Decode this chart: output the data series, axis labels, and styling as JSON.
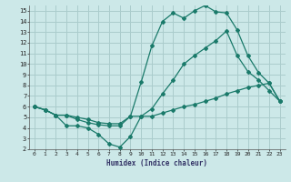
{
  "xlabel": "Humidex (Indice chaleur)",
  "bg_color": "#cce8e8",
  "grid_color": "#aacccc",
  "line_color": "#1a7a6a",
  "xlim": [
    -0.5,
    23.5
  ],
  "ylim": [
    2,
    15.5
  ],
  "xticks": [
    0,
    1,
    2,
    3,
    4,
    5,
    6,
    7,
    8,
    9,
    10,
    11,
    12,
    13,
    14,
    15,
    16,
    17,
    18,
    19,
    20,
    21,
    22,
    23
  ],
  "yticks": [
    2,
    3,
    4,
    5,
    6,
    7,
    8,
    9,
    10,
    11,
    12,
    13,
    14,
    15
  ],
  "line1_x": [
    0,
    1,
    2,
    3,
    4,
    5,
    6,
    7,
    8,
    9,
    10,
    11,
    12,
    13,
    14,
    15,
    16,
    17,
    18,
    19,
    20,
    21,
    22,
    23
  ],
  "line1_y": [
    6.0,
    5.7,
    5.2,
    5.2,
    5.0,
    4.8,
    4.5,
    4.4,
    4.4,
    5.1,
    8.3,
    11.7,
    14.0,
    14.8,
    14.3,
    15.0,
    15.5,
    14.9,
    14.8,
    13.2,
    10.8,
    9.2,
    8.2,
    6.5
  ],
  "line2_x": [
    0,
    1,
    2,
    3,
    4,
    5,
    6,
    7,
    8,
    9,
    10,
    11,
    12,
    13,
    14,
    15,
    16,
    17,
    18,
    19,
    20,
    21,
    22,
    23
  ],
  "line2_y": [
    6.0,
    5.7,
    5.2,
    5.2,
    4.8,
    4.5,
    4.3,
    4.2,
    4.2,
    5.1,
    5.1,
    5.8,
    7.2,
    8.5,
    10.0,
    10.8,
    11.5,
    12.2,
    13.1,
    10.8,
    9.3,
    8.5,
    7.5,
    6.5
  ],
  "line3_x": [
    0,
    1,
    2,
    3,
    4,
    5,
    6,
    7,
    8,
    9,
    10,
    11,
    12,
    13,
    14,
    15,
    16,
    17,
    18,
    19,
    20,
    21,
    22,
    23
  ],
  "line3_y": [
    6.0,
    5.7,
    5.2,
    4.2,
    4.2,
    4.0,
    3.4,
    2.5,
    2.2,
    3.2,
    5.1,
    5.1,
    5.4,
    5.7,
    6.0,
    6.2,
    6.5,
    6.8,
    7.2,
    7.5,
    7.8,
    8.0,
    8.2,
    6.5
  ]
}
